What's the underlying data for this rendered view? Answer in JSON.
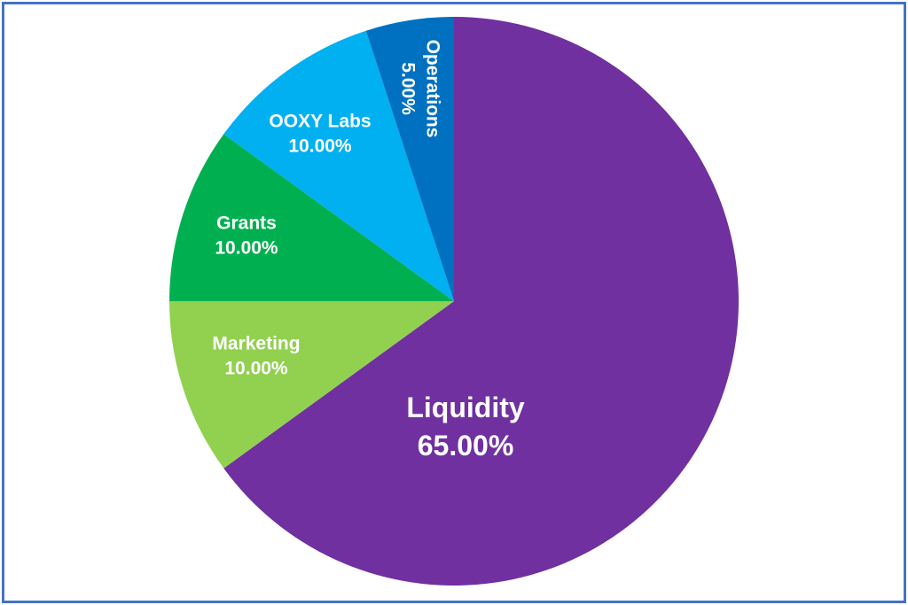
{
  "chart_data": {
    "type": "pie",
    "title": "",
    "start_angle_deg": 0,
    "direction": "clockwise",
    "legend_position": "none",
    "categories": [
      "Liquidity",
      "Marketing",
      "Grants",
      "OOXY Labs",
      "Operations"
    ],
    "values": [
      65,
      10,
      10,
      10,
      5
    ],
    "slices": [
      {
        "name": "Liquidity",
        "value": 65,
        "percent_label": "65.00%",
        "color": "#7030A0"
      },
      {
        "name": "Marketing",
        "value": 10,
        "percent_label": "10.00%",
        "color": "#92D050"
      },
      {
        "name": "Grants",
        "value": 10,
        "percent_label": "10.00%",
        "color": "#00B050"
      },
      {
        "name": "OOXY Labs",
        "value": 10,
        "percent_label": "10.00%",
        "color": "#00B0F0"
      },
      {
        "name": "Operations",
        "value": 5,
        "percent_label": "5.00%",
        "color": "#0070C0"
      }
    ],
    "label_text_color": "#FFFFFF"
  },
  "frame": {
    "border_color": "#4472C4",
    "background_color": "#FFFFFF"
  }
}
